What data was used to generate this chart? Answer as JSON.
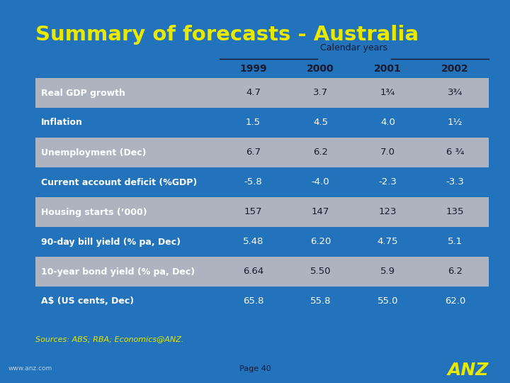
{
  "title": "Summary of forecasts - Australia",
  "subtitle": "Calendar years",
  "col_headers": [
    "1999",
    "2000",
    "2001",
    "2002"
  ],
  "rows": [
    {
      "label": "Real GDP growth",
      "values": [
        "4.7",
        "3.7",
        "1¾",
        "3¾"
      ],
      "shaded": true
    },
    {
      "label": "Inflation",
      "values": [
        "1.5",
        "4.5",
        "4.0",
        "1½"
      ],
      "shaded": false
    },
    {
      "label": "Unemployment (Dec)",
      "values": [
        "6.7",
        "6.2",
        "7.0",
        "6 ¾"
      ],
      "shaded": true
    },
    {
      "label": "Current account deficit (%GDP)",
      "values": [
        "-5.8",
        "-4.0",
        "-2.3",
        "-3.3"
      ],
      "shaded": false
    },
    {
      "label": "Housing starts (’000)",
      "values": [
        "157",
        "147",
        "123",
        "135"
      ],
      "shaded": true
    },
    {
      "label": "90-day bill yield (% pa, Dec)",
      "values": [
        "5.48",
        "6.20",
        "4.75",
        "5.1"
      ],
      "shaded": false
    },
    {
      "label": "10-year bond yield (% pa, Dec)",
      "values": [
        "6.64",
        "5.50",
        "5.9",
        "6.2"
      ],
      "shaded": true
    },
    {
      "label": "A$ (US cents, Dec)",
      "values": [
        "65.8",
        "55.8",
        "55.0",
        "62.0"
      ],
      "shaded": false
    }
  ],
  "sources_text": "Sources: ABS; RBA; Economics@ANZ.",
  "page_text": "Page 40",
  "bg_color": "#2272bc",
  "shaded_row_color": "#adb3bf",
  "title_color": "#e8e800",
  "label_color_shaded": "#ffffff",
  "label_color_unshaded": "#ffffff",
  "value_color_shaded": "#1a1a2e",
  "value_color_unshaded": "#ffffff",
  "subtitle_color": "#1a1a2e",
  "col_header_color": "#1a1a2e",
  "line_color": "#1a1a2e",
  "sources_color": "#e8e800",
  "page_color": "#1a1a2e",
  "anz_color": "#e8e800",
  "www_color": "#c0d0e0"
}
